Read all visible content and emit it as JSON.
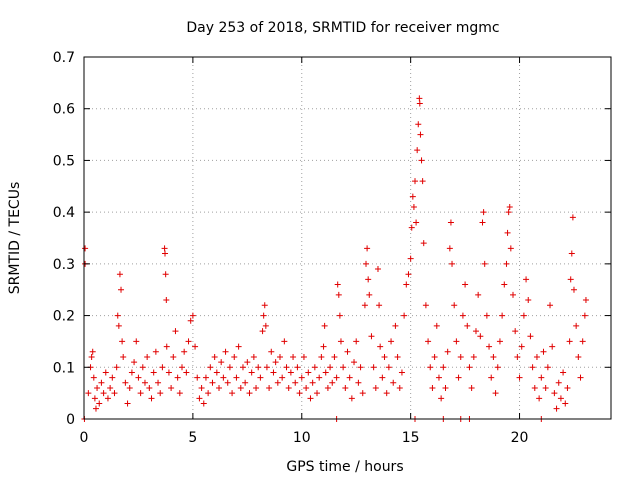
{
  "chart_data": {
    "type": "scatter",
    "title": "Day 253 of 2018, SRMTID for receiver mgmc",
    "xlabel": "GPS time / hours",
    "ylabel": "SRMTID / TECUs",
    "xlim": [
      0,
      24.2
    ],
    "ylim": [
      0,
      0.7
    ],
    "xticks": [
      0,
      5,
      10,
      15,
      20
    ],
    "xtick_labels": [
      "0",
      "5",
      "10",
      "15",
      "20"
    ],
    "yticks": [
      0,
      0.1,
      0.2,
      0.3,
      0.4,
      0.5,
      0.6,
      0.7
    ],
    "ytick_labels": [
      "0",
      "0.1",
      "0.2",
      "0.3",
      "0.4",
      "0.5",
      "0.6",
      "0.7"
    ],
    "grid": true,
    "marker": "plus",
    "color": "#e00000",
    "series": [
      {
        "name": "SRMTID",
        "points": [
          [
            0.05,
            0.33
          ],
          [
            0.05,
            0.3
          ],
          [
            0.2,
            0.05
          ],
          [
            0.3,
            0.1
          ],
          [
            0.35,
            0.12
          ],
          [
            0.4,
            0.13
          ],
          [
            0.45,
            0.08
          ],
          [
            0.5,
            0.04
          ],
          [
            0.55,
            0.02
          ],
          [
            0.6,
            0.06
          ],
          [
            0.7,
            0.03
          ],
          [
            0.8,
            0.07
          ],
          [
            0.9,
            0.05
          ],
          [
            1.0,
            0.09
          ],
          [
            1.1,
            0.04
          ],
          [
            1.2,
            0.06
          ],
          [
            1.3,
            0.08
          ],
          [
            1.4,
            0.05
          ],
          [
            1.5,
            0.1
          ],
          [
            1.55,
            0.2
          ],
          [
            1.6,
            0.18
          ],
          [
            1.65,
            0.28
          ],
          [
            1.7,
            0.25
          ],
          [
            1.75,
            0.15
          ],
          [
            1.8,
            0.12
          ],
          [
            1.9,
            0.07
          ],
          [
            2.0,
            0.03
          ],
          [
            2.1,
            0.06
          ],
          [
            2.2,
            0.09
          ],
          [
            2.3,
            0.11
          ],
          [
            2.4,
            0.15
          ],
          [
            2.5,
            0.08
          ],
          [
            2.6,
            0.05
          ],
          [
            2.7,
            0.1
          ],
          [
            2.8,
            0.07
          ],
          [
            2.9,
            0.12
          ],
          [
            3.0,
            0.06
          ],
          [
            3.1,
            0.04
          ],
          [
            3.2,
            0.09
          ],
          [
            3.3,
            0.13
          ],
          [
            3.4,
            0.07
          ],
          [
            3.5,
            0.05
          ],
          [
            3.6,
            0.1
          ],
          [
            3.7,
            0.33
          ],
          [
            3.72,
            0.32
          ],
          [
            3.75,
            0.28
          ],
          [
            3.78,
            0.23
          ],
          [
            3.8,
            0.14
          ],
          [
            3.9,
            0.09
          ],
          [
            4.0,
            0.06
          ],
          [
            4.1,
            0.12
          ],
          [
            4.2,
            0.17
          ],
          [
            4.3,
            0.08
          ],
          [
            4.4,
            0.05
          ],
          [
            4.5,
            0.1
          ],
          [
            4.6,
            0.13
          ],
          [
            4.7,
            0.09
          ],
          [
            4.8,
            0.15
          ],
          [
            4.9,
            0.19
          ],
          [
            5.0,
            0.2
          ],
          [
            5.1,
            0.14
          ],
          [
            5.2,
            0.08
          ],
          [
            5.3,
            0.04
          ],
          [
            5.4,
            0.06
          ],
          [
            5.5,
            0.03
          ],
          [
            5.6,
            0.08
          ],
          [
            5.7,
            0.05
          ],
          [
            5.8,
            0.1
          ],
          [
            5.9,
            0.07
          ],
          [
            6.0,
            0.12
          ],
          [
            6.1,
            0.09
          ],
          [
            6.2,
            0.06
          ],
          [
            6.3,
            0.11
          ],
          [
            6.4,
            0.08
          ],
          [
            6.5,
            0.13
          ],
          [
            6.6,
            0.07
          ],
          [
            6.7,
            0.1
          ],
          [
            6.8,
            0.05
          ],
          [
            6.9,
            0.12
          ],
          [
            7.0,
            0.08
          ],
          [
            7.1,
            0.14
          ],
          [
            7.2,
            0.06
          ],
          [
            7.3,
            0.1
          ],
          [
            7.4,
            0.07
          ],
          [
            7.5,
            0.11
          ],
          [
            7.6,
            0.05
          ],
          [
            7.7,
            0.09
          ],
          [
            7.8,
            0.12
          ],
          [
            7.9,
            0.06
          ],
          [
            8.0,
            0.1
          ],
          [
            8.1,
            0.08
          ],
          [
            8.2,
            0.17
          ],
          [
            8.25,
            0.2
          ],
          [
            8.3,
            0.22
          ],
          [
            8.35,
            0.18
          ],
          [
            8.4,
            0.1
          ],
          [
            8.5,
            0.06
          ],
          [
            8.6,
            0.13
          ],
          [
            8.7,
            0.09
          ],
          [
            8.8,
            0.11
          ],
          [
            8.9,
            0.07
          ],
          [
            9.0,
            0.12
          ],
          [
            9.1,
            0.08
          ],
          [
            9.2,
            0.15
          ],
          [
            9.3,
            0.1
          ],
          [
            9.4,
            0.06
          ],
          [
            9.5,
            0.09
          ],
          [
            9.6,
            0.12
          ],
          [
            9.7,
            0.07
          ],
          [
            9.8,
            0.1
          ],
          [
            9.9,
            0.05
          ],
          [
            10.0,
            0.08
          ],
          [
            10.1,
            0.12
          ],
          [
            10.2,
            0.06
          ],
          [
            10.3,
            0.09
          ],
          [
            10.4,
            0.04
          ],
          [
            10.5,
            0.07
          ],
          [
            10.6,
            0.1
          ],
          [
            10.7,
            0.05
          ],
          [
            10.8,
            0.08
          ],
          [
            10.9,
            0.12
          ],
          [
            11.0,
            0.14
          ],
          [
            11.05,
            0.18
          ],
          [
            11.1,
            0.09
          ],
          [
            11.2,
            0.06
          ],
          [
            11.3,
            0.1
          ],
          [
            11.4,
            0.07
          ],
          [
            11.5,
            0.12
          ],
          [
            11.6,
            0.08
          ],
          [
            11.65,
            0.26
          ],
          [
            11.7,
            0.24
          ],
          [
            11.75,
            0.2
          ],
          [
            11.8,
            0.15
          ],
          [
            11.9,
            0.1
          ],
          [
            12.0,
            0.06
          ],
          [
            12.1,
            0.13
          ],
          [
            12.2,
            0.08
          ],
          [
            12.3,
            0.04
          ],
          [
            12.4,
            0.11
          ],
          [
            12.5,
            0.15
          ],
          [
            12.6,
            0.07
          ],
          [
            12.7,
            0.1
          ],
          [
            12.8,
            0.05
          ],
          [
            12.9,
            0.22
          ],
          [
            12.95,
            0.3
          ],
          [
            13.0,
            0.33
          ],
          [
            13.05,
            0.27
          ],
          [
            13.1,
            0.24
          ],
          [
            13.2,
            0.16
          ],
          [
            13.3,
            0.1
          ],
          [
            13.4,
            0.06
          ],
          [
            13.5,
            0.29
          ],
          [
            13.55,
            0.22
          ],
          [
            13.6,
            0.14
          ],
          [
            13.7,
            0.08
          ],
          [
            13.8,
            0.12
          ],
          [
            13.9,
            0.05
          ],
          [
            14.0,
            0.1
          ],
          [
            14.1,
            0.15
          ],
          [
            14.2,
            0.07
          ],
          [
            14.3,
            0.18
          ],
          [
            14.4,
            0.12
          ],
          [
            14.5,
            0.06
          ],
          [
            14.6,
            0.09
          ],
          [
            14.7,
            0.2
          ],
          [
            14.8,
            0.26
          ],
          [
            14.9,
            0.28
          ],
          [
            15.0,
            0.31
          ],
          [
            15.05,
            0.37
          ],
          [
            15.1,
            0.43
          ],
          [
            15.15,
            0.41
          ],
          [
            15.2,
            0.46
          ],
          [
            15.25,
            0.38
          ],
          [
            15.3,
            0.52
          ],
          [
            15.35,
            0.57
          ],
          [
            15.4,
            0.62
          ],
          [
            15.42,
            0.61
          ],
          [
            15.45,
            0.55
          ],
          [
            15.5,
            0.5
          ],
          [
            15.55,
            0.46
          ],
          [
            15.6,
            0.34
          ],
          [
            15.7,
            0.22
          ],
          [
            15.8,
            0.15
          ],
          [
            15.9,
            0.1
          ],
          [
            16.0,
            0.06
          ],
          [
            16.1,
            0.12
          ],
          [
            16.2,
            0.18
          ],
          [
            16.3,
            0.08
          ],
          [
            16.4,
            0.04
          ],
          [
            16.5,
            0.1
          ],
          [
            16.6,
            0.06
          ],
          [
            16.7,
            0.13
          ],
          [
            16.8,
            0.33
          ],
          [
            16.85,
            0.38
          ],
          [
            16.9,
            0.3
          ],
          [
            17.0,
            0.22
          ],
          [
            17.1,
            0.15
          ],
          [
            17.2,
            0.08
          ],
          [
            17.3,
            0.12
          ],
          [
            17.4,
            0.2
          ],
          [
            17.5,
            0.26
          ],
          [
            17.6,
            0.18
          ],
          [
            17.7,
            0.1
          ],
          [
            17.8,
            0.06
          ],
          [
            17.9,
            0.12
          ],
          [
            18.0,
            0.17
          ],
          [
            18.1,
            0.24
          ],
          [
            18.2,
            0.16
          ],
          [
            18.3,
            0.38
          ],
          [
            18.35,
            0.4
          ],
          [
            18.4,
            0.3
          ],
          [
            18.5,
            0.2
          ],
          [
            18.6,
            0.14
          ],
          [
            18.7,
            0.08
          ],
          [
            18.8,
            0.12
          ],
          [
            18.9,
            0.05
          ],
          [
            19.0,
            0.1
          ],
          [
            19.1,
            0.15
          ],
          [
            19.2,
            0.2
          ],
          [
            19.3,
            0.26
          ],
          [
            19.4,
            0.3
          ],
          [
            19.45,
            0.36
          ],
          [
            19.5,
            0.4
          ],
          [
            19.55,
            0.41
          ],
          [
            19.6,
            0.33
          ],
          [
            19.7,
            0.24
          ],
          [
            19.8,
            0.17
          ],
          [
            19.9,
            0.12
          ],
          [
            20.0,
            0.08
          ],
          [
            20.1,
            0.14
          ],
          [
            20.2,
            0.2
          ],
          [
            20.3,
            0.27
          ],
          [
            20.4,
            0.23
          ],
          [
            20.5,
            0.16
          ],
          [
            20.6,
            0.1
          ],
          [
            20.7,
            0.06
          ],
          [
            20.8,
            0.12
          ],
          [
            20.9,
            0.04
          ],
          [
            21.0,
            0.08
          ],
          [
            21.1,
            0.13
          ],
          [
            21.2,
            0.06
          ],
          [
            21.3,
            0.1
          ],
          [
            21.4,
            0.22
          ],
          [
            21.5,
            0.14
          ],
          [
            21.6,
            0.05
          ],
          [
            21.7,
            0.02
          ],
          [
            21.8,
            0.07
          ],
          [
            21.9,
            0.04
          ],
          [
            22.0,
            0.09
          ],
          [
            22.1,
            0.03
          ],
          [
            22.2,
            0.06
          ],
          [
            22.3,
            0.15
          ],
          [
            22.35,
            0.27
          ],
          [
            22.4,
            0.32
          ],
          [
            22.45,
            0.39
          ],
          [
            22.5,
            0.25
          ],
          [
            22.6,
            0.18
          ],
          [
            22.7,
            0.12
          ],
          [
            22.8,
            0.08
          ],
          [
            22.9,
            0.15
          ],
          [
            23.0,
            0.2
          ],
          [
            23.05,
            0.23
          ],
          [
            0.02,
            0.0
          ],
          [
            11.6,
            0.0
          ],
          [
            15.2,
            0.0
          ],
          [
            16.5,
            0.0
          ],
          [
            17.3,
            0.0
          ],
          [
            17.7,
            0.0
          ],
          [
            21.0,
            0.0
          ]
        ]
      }
    ]
  }
}
